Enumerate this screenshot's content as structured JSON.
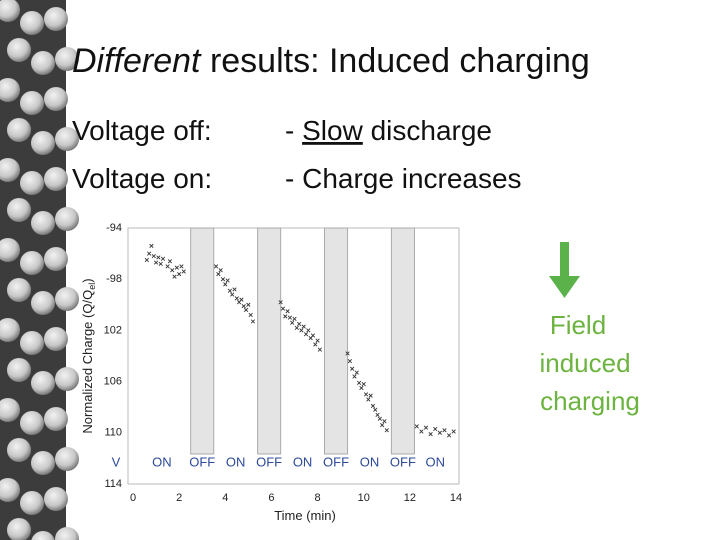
{
  "slide": {
    "title_italic": "Different",
    "title_rest": " results: Induced charging",
    "row1_label": "Voltage off:",
    "row1_prefix": "- ",
    "row1_underlined": "Slow",
    "row1_rest": " discharge",
    "row2_label": "Voltage on:",
    "row2_text": "- Charge increases",
    "annotation": [
      "Field",
      "induced",
      "charging"
    ]
  },
  "chart_data": {
    "type": "scatter",
    "y_label": {
      "text": "Normalized Charge (Q/Q",
      "sub": "el",
      "end": ")"
    },
    "x_label": "Time (min)",
    "xlim": [
      0,
      14
    ],
    "xticks": [
      0,
      2,
      4,
      6,
      8,
      10,
      12,
      14
    ],
    "ylim": [
      -114,
      -94
    ],
    "yticks": [
      -94,
      -98,
      {
        "value": -102,
        "label": "102"
      },
      {
        "value": -106,
        "label": "106"
      },
      {
        "value": -110,
        "label": "110"
      },
      {
        "value": -114,
        "label": "114"
      }
    ],
    "shaded_bands": [
      [
        2.5,
        3.5
      ],
      [
        5.4,
        6.4
      ],
      [
        8.3,
        9.3
      ],
      [
        11.2,
        12.2
      ]
    ],
    "voltage_title": "V",
    "voltage_labels": [
      "ON",
      "OFF",
      "ON",
      "OFF",
      "ON",
      "OFF",
      "ON",
      "OFF",
      "ON"
    ],
    "color": "#333333",
    "x": [
      0.6,
      0.7,
      0.8,
      0.9,
      1.0,
      1.1,
      1.2,
      1.3,
      1.5,
      1.6,
      1.7,
      1.8,
      1.9,
      2.0,
      2.1,
      2.2,
      3.6,
      3.7,
      3.8,
      3.9,
      4.0,
      4.1,
      4.2,
      4.3,
      4.4,
      4.5,
      4.6,
      4.7,
      4.8,
      4.9,
      5.0,
      5.1,
      5.2,
      6.4,
      6.5,
      6.6,
      6.7,
      6.8,
      6.9,
      7.0,
      7.1,
      7.2,
      7.3,
      7.4,
      7.5,
      7.6,
      7.7,
      7.8,
      7.9,
      8.0,
      8.1,
      9.3,
      9.4,
      9.5,
      9.6,
      9.7,
      9.8,
      9.9,
      10.0,
      10.1,
      10.2,
      10.3,
      10.4,
      10.5,
      10.6,
      10.7,
      10.8,
      10.9,
      11.0,
      12.3,
      12.5,
      12.7,
      12.9,
      13.1,
      13.3,
      13.5,
      13.7,
      13.9
    ],
    "values": [
      -96.5,
      -96.0,
      -95.4,
      -96.2,
      -96.7,
      -96.3,
      -96.8,
      -96.4,
      -97.0,
      -96.6,
      -97.3,
      -97.8,
      -97.1,
      -97.6,
      -97.0,
      -97.4,
      -97.0,
      -97.6,
      -97.3,
      -98.0,
      -98.4,
      -98.1,
      -98.9,
      -99.2,
      -98.8,
      -99.5,
      -99.8,
      -99.6,
      -100.1,
      -100.4,
      -100.0,
      -100.8,
      -101.3,
      -99.8,
      -100.3,
      -100.9,
      -100.5,
      -101.0,
      -101.4,
      -101.1,
      -101.8,
      -101.5,
      -102.0,
      -101.7,
      -102.3,
      -102.0,
      -102.6,
      -102.4,
      -103.1,
      -102.8,
      -103.5,
      -103.8,
      -104.4,
      -105.0,
      -105.6,
      -105.3,
      -106.1,
      -106.5,
      -106.2,
      -107.0,
      -107.4,
      -107.1,
      -107.9,
      -108.2,
      -108.6,
      -108.9,
      -109.4,
      -109.1,
      -109.8,
      -109.5,
      -109.9,
      -109.6,
      -110.1,
      -109.7,
      -110.0,
      -109.8,
      -110.2,
      -109.9
    ]
  }
}
